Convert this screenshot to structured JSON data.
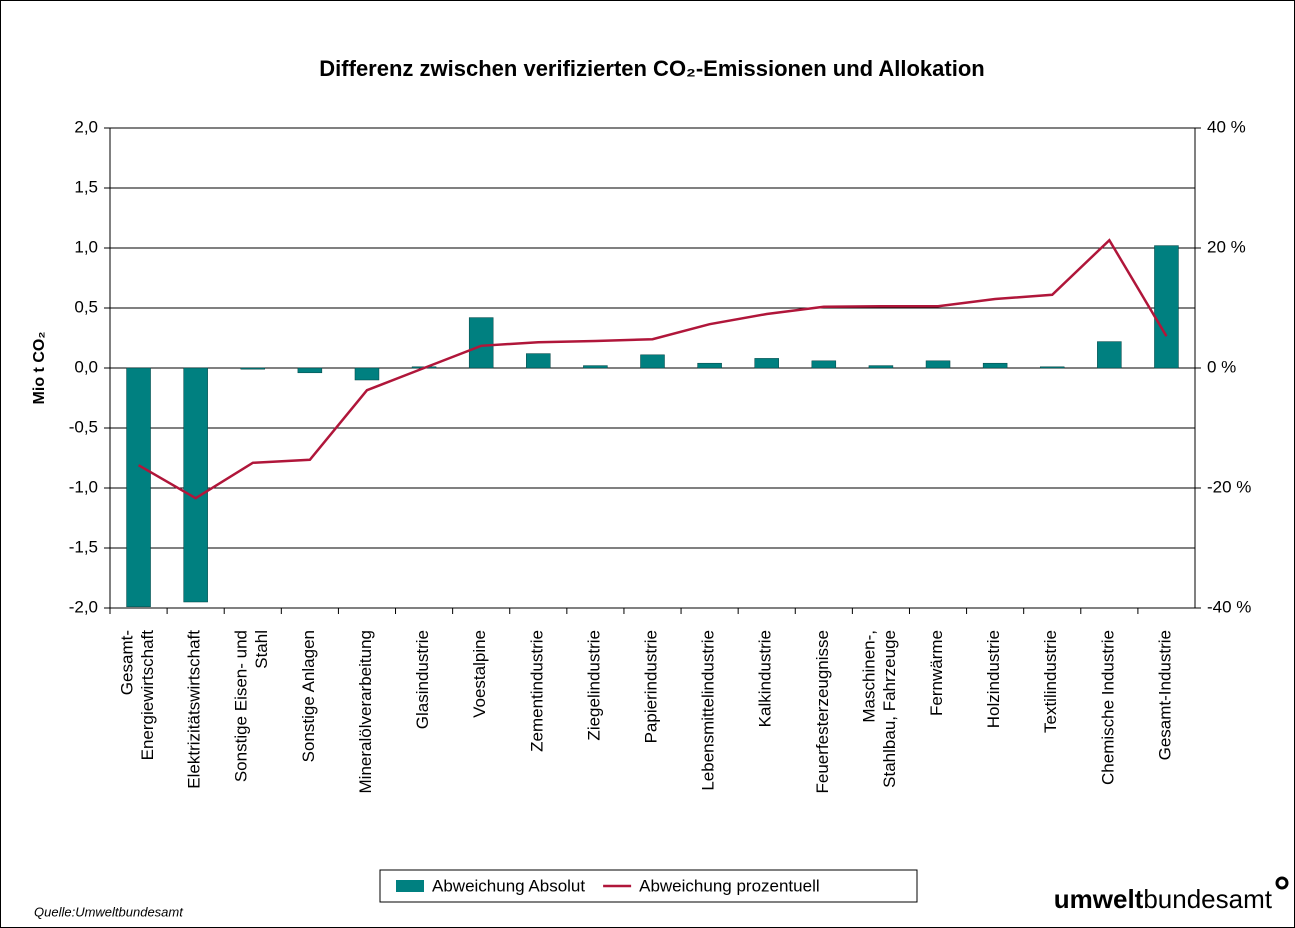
{
  "chart_data": {
    "type": "bar",
    "title": "Differenz zwischen verifizierten CO₂-Emissionen und Allokation",
    "ylabel": "Mio t CO₂",
    "source": "Quelle:Umweltbundesamt",
    "logo": {
      "bold": "umwelt",
      "regular": "bundesamt"
    },
    "categories": [
      "Gesamt-\nEnergiewirtschaft",
      "Elektrizitätswirtschaft",
      "Sonstige Eisen- und\nStahl",
      "Sonstige Anlagen",
      "Mineralölverarbeitung",
      "Glasindustrie",
      "Voestalpine",
      "Zementindustrie",
      "Ziegelindustrie",
      "Papierindustrie",
      "Lebensmittelindustrie",
      "Kalkindustrie",
      "Feuerfesterzeugnisse",
      "Maschinen-,\nStahlbau, Fahrzeuge",
      "Fernwärme",
      "Holzindustrie",
      "Textilindustrie",
      "Chemische Industrie",
      "Gesamt-Industrie"
    ],
    "series": [
      {
        "name": "Abweichung Absolut",
        "type": "bar",
        "color": "#008080",
        "values": [
          -1.99,
          -1.95,
          -0.01,
          -0.04,
          -0.1,
          0.01,
          0.42,
          0.12,
          0.02,
          0.11,
          0.04,
          0.08,
          0.06,
          0.02,
          0.06,
          0.04,
          0.01,
          0.22,
          1.02
        ]
      },
      {
        "name": "Abweichung prozentuell",
        "type": "line",
        "axis": "y2",
        "color": "#b0163a",
        "values": [
          -16.2,
          -21.7,
          -15.8,
          -15.3,
          -3.7,
          0,
          3.7,
          4.3,
          4.5,
          4.8,
          7.3,
          9.0,
          10.2,
          10.3,
          10.3,
          11.5,
          12.2,
          21.3,
          5.3
        ]
      }
    ],
    "ylim": [
      -2,
      2
    ],
    "yticks": [
      {
        "value": -2,
        "label": "-2,0"
      },
      {
        "value": -1.5,
        "label": "-1,5"
      },
      {
        "value": -1,
        "label": "-1,0"
      },
      {
        "value": -0.5,
        "label": "-0,5"
      },
      {
        "value": 0,
        "label": "0,0"
      },
      {
        "value": 0.5,
        "label": "0,5"
      },
      {
        "value": 1,
        "label": "1,0"
      },
      {
        "value": 1.5,
        "label": "1,5"
      },
      {
        "value": 2,
        "label": "2,0"
      }
    ],
    "y2lim": [
      -40,
      40
    ],
    "y2ticks": [
      {
        "value": -40,
        "label": "-40 %"
      },
      {
        "value": -20,
        "label": "-20 %"
      },
      {
        "value": 0,
        "label": "0 %"
      },
      {
        "value": 20,
        "label": "20 %"
      },
      {
        "value": 40,
        "label": "40 %"
      }
    ],
    "grid": true,
    "legend": "bottom"
  }
}
